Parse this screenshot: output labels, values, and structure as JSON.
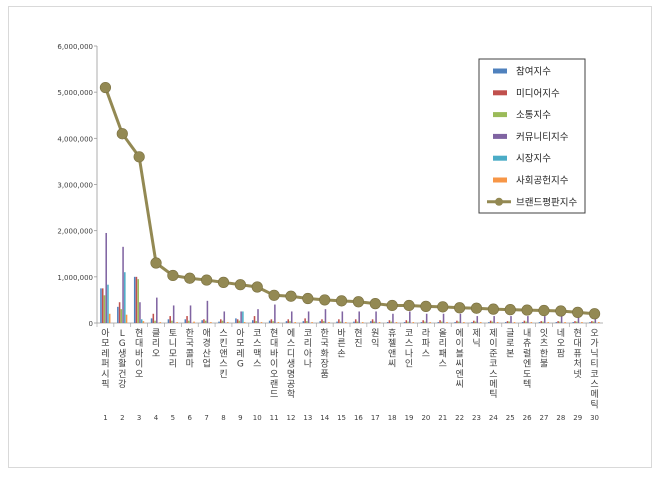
{
  "chart_data": {
    "type": "bar",
    "categories": [
      "1",
      "2",
      "3",
      "4",
      "5",
      "6",
      "7",
      "8",
      "9",
      "10",
      "11",
      "12",
      "13",
      "14",
      "15",
      "16",
      "17",
      "18",
      "19",
      "20",
      "21",
      "22",
      "23",
      "24",
      "25",
      "26",
      "27",
      "28",
      "29",
      "30"
    ],
    "brands": [
      "아모레퍼시픽",
      "LG생활건강",
      "현대바이오",
      "클리오",
      "토니모리",
      "한국콜마",
      "애경산업",
      "스킨앤스킨",
      "아모레G",
      "코스맥스",
      "현대바이오랜드",
      "에스디생명공학",
      "코리아나",
      "한국화장품",
      "바른손",
      "현진",
      "원익",
      "휴젤앤씨",
      "코스나인",
      "라파스",
      "올리패스",
      "에이블씨엔씨",
      "제닉",
      "제이준코스메틱",
      "글로본",
      "내츄럴엔도텍",
      "잇츠한불",
      "네오팜",
      "현대퓨처넷",
      "오가닉티코스메틱"
    ],
    "yticks": [
      "0",
      "1,000,000",
      "2,000,000",
      "3,000,000",
      "4,000,000",
      "5,000,000",
      "6,000,000"
    ],
    "ylim": [
      0,
      6000000
    ],
    "series": [
      {
        "name": "참여지수",
        "color": "#4f81bd",
        "values": [
          750000,
          350000,
          1000000,
          100000,
          80000,
          80000,
          60000,
          30000,
          100000,
          60000,
          50000,
          40000,
          40000,
          40000,
          30000,
          30000,
          40000,
          20000,
          20000,
          20000,
          20000,
          20000,
          20000,
          20000,
          20000,
          20000,
          20000,
          20000,
          20000,
          20000
        ]
      },
      {
        "name": "미디어지수",
        "color": "#c0504d",
        "values": [
          750000,
          450000,
          1000000,
          200000,
          150000,
          150000,
          80000,
          80000,
          80000,
          150000,
          80000,
          80000,
          100000,
          80000,
          80000,
          80000,
          80000,
          60000,
          60000,
          60000,
          60000,
          50000,
          50000,
          50000,
          40000,
          50000,
          40000,
          40000,
          40000,
          40000
        ]
      },
      {
        "name": "소통지수",
        "color": "#9bbb59",
        "values": [
          600000,
          300000,
          950000,
          50000,
          50000,
          50000,
          50000,
          50000,
          50000,
          40000,
          40000,
          40000,
          40000,
          40000,
          30000,
          30000,
          30000,
          30000,
          30000,
          30000,
          30000,
          30000,
          30000,
          30000,
          30000,
          30000,
          30000,
          30000,
          30000,
          30000
        ]
      },
      {
        "name": "커뮤니티지수",
        "color": "#8064a2",
        "values": [
          1950000,
          1650000,
          450000,
          550000,
          380000,
          380000,
          480000,
          250000,
          250000,
          300000,
          400000,
          250000,
          250000,
          300000,
          250000,
          250000,
          250000,
          200000,
          250000,
          200000,
          200000,
          200000,
          150000,
          150000,
          150000,
          150000,
          150000,
          150000,
          150000,
          150000
        ]
      },
      {
        "name": "시장지수",
        "color": "#4bacc6",
        "values": [
          830000,
          1100000,
          80000,
          0,
          0,
          0,
          0,
          0,
          250000,
          0,
          0,
          0,
          0,
          0,
          0,
          0,
          0,
          0,
          0,
          0,
          0,
          0,
          0,
          0,
          0,
          0,
          0,
          0,
          0,
          0
        ]
      },
      {
        "name": "사회공헌지수",
        "color": "#f79646",
        "values": [
          200000,
          180000,
          40000,
          20000,
          20000,
          30000,
          20000,
          20000,
          20000,
          20000,
          20000,
          20000,
          20000,
          20000,
          20000,
          20000,
          20000,
          20000,
          20000,
          20000,
          20000,
          20000,
          20000,
          20000,
          20000,
          20000,
          20000,
          20000,
          20000,
          20000
        ]
      },
      {
        "name": "브랜드평판지수",
        "color": "#938953",
        "type": "line",
        "values": [
          5100000,
          4100000,
          3600000,
          1300000,
          1030000,
          970000,
          930000,
          880000,
          830000,
          780000,
          600000,
          580000,
          530000,
          500000,
          480000,
          460000,
          420000,
          380000,
          380000,
          360000,
          350000,
          330000,
          320000,
          300000,
          290000,
          280000,
          270000,
          260000,
          230000,
          200000
        ]
      }
    ],
    "legend_position": "top-right",
    "grid": false,
    "xlabel": "",
    "ylabel": ""
  }
}
